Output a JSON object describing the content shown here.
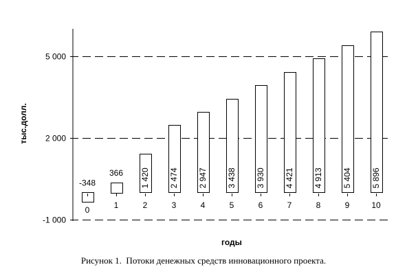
{
  "chart_data": {
    "type": "bar",
    "categories": [
      "0",
      "1",
      "2",
      "3",
      "4",
      "5",
      "6",
      "7",
      "8",
      "9",
      "10"
    ],
    "values": [
      -348,
      366,
      1420,
      2474,
      2947,
      3438,
      3930,
      4421,
      4913,
      5404,
      5896
    ],
    "data_labels": [
      "-348",
      "366",
      "1 420",
      "2 474",
      "2 947",
      "3 438",
      "3 930",
      "4 421",
      "4 913",
      "5 404",
      "5 896"
    ],
    "ylim": [
      -1000,
      6000
    ],
    "y_ticks": [
      -1000,
      2000,
      5000
    ],
    "y_tick_labels": [
      "-1 000",
      "2 000",
      "5 000"
    ],
    "xlabel": "годы",
    "ylabel": "тыс.долл.",
    "grid": "dashed horizontal at y ticks",
    "bar_fill": "#ffffff",
    "bar_stroke": "#000000"
  },
  "caption": "Рисунок 1.  Потоки денежных средств инновационного проекта."
}
